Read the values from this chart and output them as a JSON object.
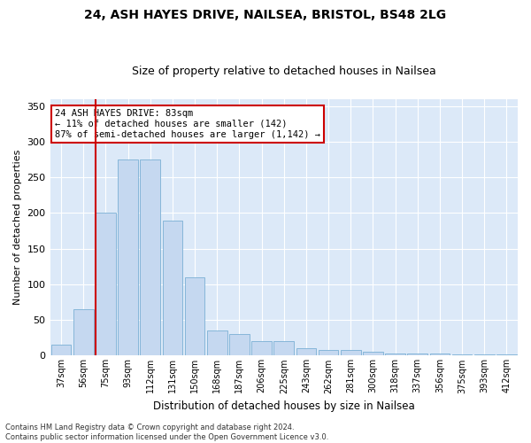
{
  "title1": "24, ASH HAYES DRIVE, NAILSEA, BRISTOL, BS48 2LG",
  "title2": "Size of property relative to detached houses in Nailsea",
  "xlabel": "Distribution of detached houses by size in Nailsea",
  "ylabel": "Number of detached properties",
  "categories": [
    "37sqm",
    "56sqm",
    "75sqm",
    "93sqm",
    "112sqm",
    "131sqm",
    "150sqm",
    "168sqm",
    "187sqm",
    "206sqm",
    "225sqm",
    "243sqm",
    "262sqm",
    "281sqm",
    "300sqm",
    "318sqm",
    "337sqm",
    "356sqm",
    "375sqm",
    "393sqm",
    "412sqm"
  ],
  "values": [
    15,
    65,
    200,
    275,
    275,
    190,
    110,
    35,
    30,
    20,
    20,
    10,
    8,
    8,
    5,
    3,
    3,
    3,
    2,
    2,
    2
  ],
  "bar_color": "#c5d8f0",
  "bar_edge_color": "#7aafd4",
  "vline_color": "#cc0000",
  "annotation_text": "24 ASH HAYES DRIVE: 83sqm\n← 11% of detached houses are smaller (142)\n87% of semi-detached houses are larger (1,142) →",
  "annotation_box_color": "#ffffff",
  "annotation_box_edge": "#cc0000",
  "ylim": [
    0,
    360
  ],
  "yticks": [
    0,
    50,
    100,
    150,
    200,
    250,
    300,
    350
  ],
  "footnote": "Contains HM Land Registry data © Crown copyright and database right 2024.\nContains public sector information licensed under the Open Government Licence v3.0.",
  "plot_bg_color": "#dce9f8",
  "fig_bg_color": "#ffffff",
  "grid_color": "#ffffff"
}
